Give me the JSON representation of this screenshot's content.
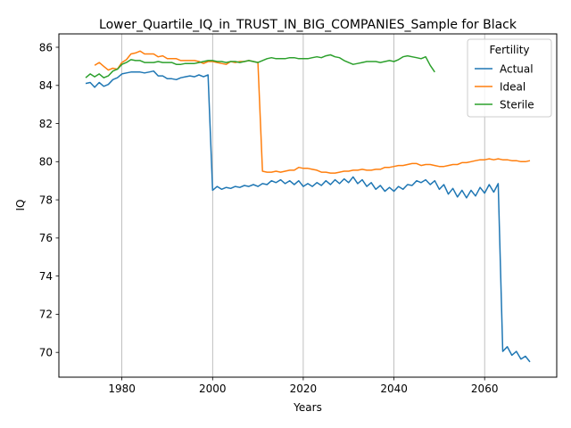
{
  "chart_data": {
    "type": "line",
    "title": "Lower_Quartile_IQ_in_TRUST_IN_BIG_COMPANIES_Sample for Black",
    "xlabel": "Years",
    "ylabel": "IQ",
    "xlim": [
      1966.1,
      2075.9
    ],
    "ylim": [
      68.7,
      86.7
    ],
    "xticks": [
      1980,
      2000,
      2020,
      2040,
      2060
    ],
    "yticks": [
      70,
      72,
      74,
      76,
      78,
      80,
      82,
      84,
      86
    ],
    "grid": "vertical",
    "legend": {
      "title": "Fertility",
      "placement": "top-right",
      "entries": [
        "Actual",
        "Ideal",
        "Sterile"
      ]
    },
    "series": [
      {
        "name": "Actual",
        "color": "#1f77b4",
        "x": [
          1972,
          1973,
          1974,
          1975,
          1976,
          1977,
          1978,
          1979,
          1980,
          1981,
          1982,
          1983,
          1984,
          1985,
          1986,
          1987,
          1988,
          1989,
          1990,
          1991,
          1992,
          1993,
          1994,
          1995,
          1996,
          1997,
          1998,
          1999,
          2000,
          2001,
          2002,
          2003,
          2004,
          2005,
          2006,
          2007,
          2008,
          2009,
          2010,
          2011,
          2012,
          2013,
          2014,
          2015,
          2016,
          2017,
          2018,
          2019,
          2020,
          2021,
          2022,
          2023,
          2024,
          2025,
          2026,
          2027,
          2028,
          2029,
          2030,
          2031,
          2032,
          2033,
          2034,
          2035,
          2036,
          2037,
          2038,
          2039,
          2040,
          2041,
          2042,
          2043,
          2044,
          2045,
          2046,
          2047,
          2048,
          2049,
          2050,
          2051,
          2052,
          2053,
          2054,
          2055,
          2056,
          2057,
          2058,
          2059,
          2060,
          2061,
          2062,
          2063,
          2064,
          2065,
          2066,
          2067,
          2068,
          2069,
          2070
        ],
        "values": [
          84.1,
          84.15,
          83.9,
          84.15,
          83.95,
          84.05,
          84.3,
          84.4,
          84.6,
          84.65,
          84.7,
          84.7,
          84.7,
          84.65,
          84.7,
          84.75,
          84.5,
          84.5,
          84.35,
          84.35,
          84.3,
          84.4,
          84.45,
          84.5,
          84.45,
          84.55,
          84.45,
          84.55,
          78.5,
          78.7,
          78.55,
          78.65,
          78.6,
          78.7,
          78.65,
          78.75,
          78.7,
          78.8,
          78.7,
          78.85,
          78.8,
          79.0,
          78.9,
          79.05,
          78.85,
          79.0,
          78.8,
          79.0,
          78.7,
          78.85,
          78.7,
          78.9,
          78.75,
          79.0,
          78.8,
          79.05,
          78.85,
          79.1,
          78.9,
          79.2,
          78.85,
          79.05,
          78.7,
          78.9,
          78.55,
          78.75,
          78.45,
          78.65,
          78.45,
          78.7,
          78.55,
          78.8,
          78.75,
          79.0,
          78.9,
          79.05,
          78.8,
          79.0,
          78.55,
          78.8,
          78.3,
          78.6,
          78.15,
          78.5,
          78.1,
          78.5,
          78.2,
          78.65,
          78.35,
          78.8,
          78.4,
          78.85,
          70.05,
          70.3,
          69.85,
          70.05,
          69.65,
          69.8,
          69.5
        ]
      },
      {
        "name": "Ideal",
        "color": "#ff7f0e",
        "x": [
          1974,
          1975,
          1976,
          1977,
          1978,
          1979,
          1980,
          1981,
          1982,
          1983,
          1984,
          1985,
          1986,
          1987,
          1988,
          1989,
          1990,
          1991,
          1992,
          1993,
          1994,
          1995,
          1996,
          1997,
          1998,
          1999,
          2000,
          2001,
          2002,
          2003,
          2004,
          2005,
          2006,
          2007,
          2008,
          2009,
          2010,
          2011,
          2012,
          2013,
          2014,
          2015,
          2016,
          2017,
          2018,
          2019,
          2020,
          2021,
          2022,
          2023,
          2024,
          2025,
          2026,
          2027,
          2028,
          2029,
          2030,
          2031,
          2032,
          2033,
          2034,
          2035,
          2036,
          2037,
          2038,
          2039,
          2040,
          2041,
          2042,
          2043,
          2044,
          2045,
          2046,
          2047,
          2048,
          2049,
          2050,
          2051,
          2052,
          2053,
          2054,
          2055,
          2056,
          2057,
          2058,
          2059,
          2060,
          2061,
          2062,
          2063,
          2064,
          2065,
          2066,
          2067,
          2068,
          2069,
          2070
        ],
        "values": [
          85.05,
          85.2,
          85.0,
          84.8,
          84.9,
          84.85,
          85.2,
          85.35,
          85.65,
          85.7,
          85.8,
          85.65,
          85.65,
          85.65,
          85.5,
          85.55,
          85.4,
          85.4,
          85.4,
          85.3,
          85.3,
          85.3,
          85.3,
          85.25,
          85.15,
          85.25,
          85.25,
          85.2,
          85.15,
          85.1,
          85.25,
          85.2,
          85.25,
          85.25,
          85.3,
          85.25,
          85.2,
          79.5,
          79.45,
          79.45,
          79.5,
          79.45,
          79.5,
          79.55,
          79.55,
          79.7,
          79.65,
          79.65,
          79.6,
          79.55,
          79.45,
          79.45,
          79.4,
          79.4,
          79.45,
          79.5,
          79.5,
          79.55,
          79.55,
          79.6,
          79.55,
          79.55,
          79.6,
          79.6,
          79.7,
          79.7,
          79.75,
          79.8,
          79.8,
          79.85,
          79.9,
          79.9,
          79.8,
          79.85,
          79.85,
          79.8,
          79.75,
          79.75,
          79.8,
          79.85,
          79.85,
          79.95,
          79.95,
          80.0,
          80.05,
          80.1,
          80.1,
          80.15,
          80.1,
          80.15,
          80.1,
          80.1,
          80.05,
          80.05,
          80.0,
          80.0,
          80.05
        ]
      },
      {
        "name": "Sterile",
        "color": "#2ca02c",
        "x": [
          1972,
          1973,
          1974,
          1975,
          1976,
          1977,
          1978,
          1979,
          1980,
          1981,
          1982,
          1983,
          1984,
          1985,
          1986,
          1987,
          1988,
          1989,
          1990,
          1991,
          1992,
          1993,
          1994,
          1995,
          1996,
          1997,
          1998,
          1999,
          2000,
          2001,
          2002,
          2003,
          2004,
          2005,
          2006,
          2007,
          2008,
          2009,
          2010,
          2011,
          2012,
          2013,
          2014,
          2015,
          2016,
          2017,
          2018,
          2019,
          2020,
          2021,
          2022,
          2023,
          2024,
          2025,
          2026,
          2027,
          2028,
          2029,
          2030,
          2031,
          2032,
          2033,
          2034,
          2035,
          2036,
          2037,
          2038,
          2039,
          2040,
          2041,
          2042,
          2043,
          2044,
          2045,
          2046,
          2047,
          2048,
          2049
        ],
        "values": [
          84.4,
          84.6,
          84.45,
          84.6,
          84.4,
          84.5,
          84.75,
          84.85,
          85.1,
          85.2,
          85.35,
          85.3,
          85.3,
          85.2,
          85.2,
          85.2,
          85.25,
          85.2,
          85.2,
          85.2,
          85.1,
          85.1,
          85.15,
          85.15,
          85.15,
          85.2,
          85.25,
          85.3,
          85.3,
          85.25,
          85.25,
          85.2,
          85.25,
          85.25,
          85.2,
          85.25,
          85.3,
          85.25,
          85.2,
          85.3,
          85.4,
          85.45,
          85.4,
          85.4,
          85.4,
          85.45,
          85.45,
          85.4,
          85.4,
          85.4,
          85.45,
          85.5,
          85.45,
          85.55,
          85.6,
          85.5,
          85.45,
          85.3,
          85.2,
          85.1,
          85.15,
          85.2,
          85.25,
          85.25,
          85.25,
          85.2,
          85.25,
          85.3,
          85.25,
          85.35,
          85.5,
          85.55,
          85.5,
          85.45,
          85.4,
          85.5,
          85.05,
          84.7
        ]
      }
    ]
  }
}
